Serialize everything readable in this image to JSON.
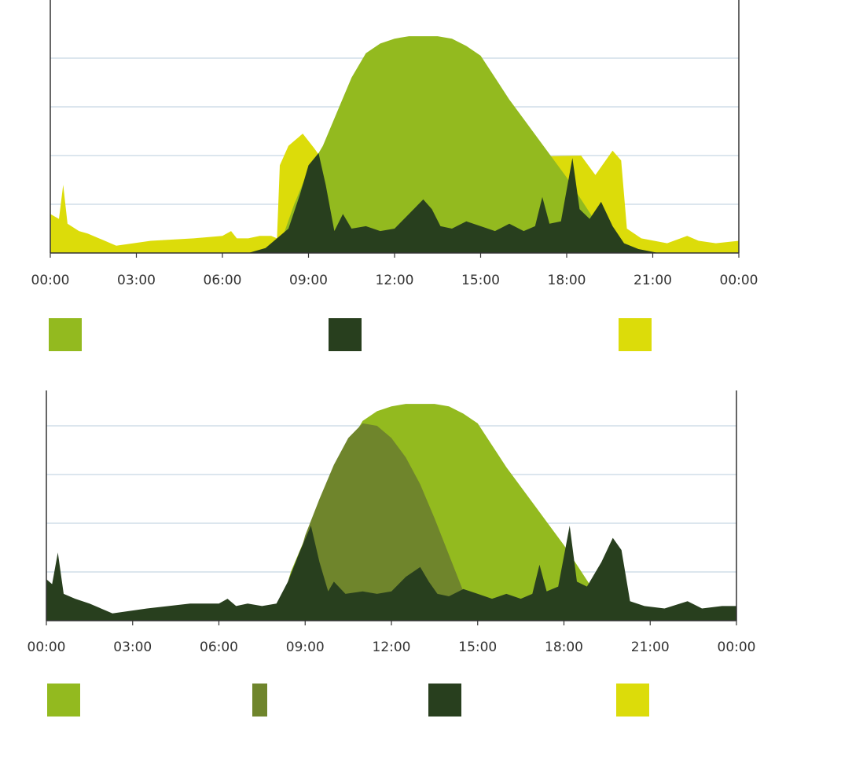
{
  "colors": {
    "production": "#93BA1F",
    "self_consumption": "#6F852C",
    "consumption": "#283F1E",
    "grid_import": "#DCDC0A",
    "grid": "#c8d6e4",
    "axis": "#333333"
  },
  "chart_data": [
    {
      "type": "area",
      "title": "",
      "xlabel": "",
      "ylabel": "",
      "x_ticks": [
        "00:00",
        "03:00",
        "06:00",
        "09:00",
        "12:00",
        "15:00",
        "18:00",
        "21:00",
        "00:00"
      ],
      "xlim": [
        0,
        24
      ],
      "ylim": [
        0,
        5
      ],
      "grid": true,
      "legend": [
        {
          "name": "",
          "color": "#93BA1F"
        },
        {
          "name": "",
          "color": "#283F1E"
        },
        {
          "name": "",
          "color": "#DCDC0A"
        }
      ],
      "series": [
        {
          "name": "",
          "color": "#DCDC0A",
          "points": [
            [
              0,
              0.8
            ],
            [
              0.3,
              0.7
            ],
            [
              0.45,
              1.4
            ],
            [
              0.6,
              0.6
            ],
            [
              1.0,
              0.45
            ],
            [
              1.3,
              0.4
            ],
            [
              2.3,
              0.15
            ],
            [
              3.5,
              0.25
            ],
            [
              5.0,
              0.3
            ],
            [
              6.0,
              0.35
            ],
            [
              6.3,
              0.45
            ],
            [
              6.5,
              0.3
            ],
            [
              6.9,
              0.3
            ],
            [
              7.3,
              0.35
            ],
            [
              7.7,
              0.35
            ],
            [
              7.9,
              0.3
            ],
            [
              8.0,
              1.8
            ],
            [
              8.3,
              2.2
            ],
            [
              8.5,
              2.3
            ],
            [
              8.8,
              2.45
            ],
            [
              9.2,
              2.15
            ],
            [
              9.5,
              1.9
            ],
            [
              18.5,
              2.0
            ],
            [
              19.0,
              1.6
            ],
            [
              19.6,
              2.1
            ],
            [
              19.9,
              1.9
            ],
            [
              20.1,
              0.5
            ],
            [
              20.6,
              0.3
            ],
            [
              21.5,
              0.2
            ],
            [
              22.2,
              0.35
            ],
            [
              22.6,
              0.25
            ],
            [
              23.2,
              0.2
            ],
            [
              24,
              0.25
            ]
          ]
        },
        {
          "name": "",
          "color": "#93BA1F",
          "points": [
            [
              7.9,
              0
            ],
            [
              8.5,
              1.0
            ],
            [
              9.0,
              1.7
            ],
            [
              9.5,
              2.2
            ],
            [
              10.0,
              2.9
            ],
            [
              10.5,
              3.6
            ],
            [
              11.0,
              4.1
            ],
            [
              11.5,
              4.3
            ],
            [
              12.0,
              4.4
            ],
            [
              12.5,
              4.45
            ],
            [
              13.0,
              4.45
            ],
            [
              13.5,
              4.45
            ],
            [
              14.0,
              4.4
            ],
            [
              14.5,
              4.25
            ],
            [
              15.0,
              4.05
            ],
            [
              15.5,
              3.6
            ],
            [
              16.0,
              3.15
            ],
            [
              16.5,
              2.75
            ],
            [
              17.0,
              2.35
            ],
            [
              17.5,
              1.95
            ],
            [
              18.0,
              1.55
            ],
            [
              18.5,
              1.1
            ],
            [
              19.0,
              0.65
            ],
            [
              19.5,
              0.25
            ],
            [
              20.0,
              0
            ]
          ]
        },
        {
          "name": "",
          "color": "#283F1E",
          "points": [
            [
              6.9,
              0
            ],
            [
              7.5,
              0.1
            ],
            [
              8.3,
              0.5
            ],
            [
              8.7,
              1.2
            ],
            [
              9.0,
              1.8
            ],
            [
              9.35,
              2.05
            ],
            [
              9.6,
              1.4
            ],
            [
              9.9,
              0.45
            ],
            [
              10.2,
              0.8
            ],
            [
              10.5,
              0.5
            ],
            [
              11.0,
              0.55
            ],
            [
              11.5,
              0.45
            ],
            [
              12.0,
              0.5
            ],
            [
              12.5,
              0.8
            ],
            [
              13.0,
              1.1
            ],
            [
              13.3,
              0.9
            ],
            [
              13.6,
              0.55
            ],
            [
              14.0,
              0.5
            ],
            [
              14.5,
              0.65
            ],
            [
              15.0,
              0.55
            ],
            [
              15.5,
              0.45
            ],
            [
              16.0,
              0.6
            ],
            [
              16.5,
              0.45
            ],
            [
              16.9,
              0.55
            ],
            [
              17.15,
              1.15
            ],
            [
              17.4,
              0.6
            ],
            [
              17.8,
              0.65
            ],
            [
              18.2,
              1.95
            ],
            [
              18.45,
              0.9
            ],
            [
              18.8,
              0.7
            ],
            [
              19.2,
              1.05
            ],
            [
              19.6,
              0.55
            ],
            [
              20.0,
              0.2
            ],
            [
              20.5,
              0.08
            ],
            [
              21.2,
              0
            ]
          ]
        }
      ]
    },
    {
      "type": "area",
      "title": "",
      "xlabel": "",
      "ylabel": "",
      "x_ticks": [
        "00:00",
        "03:00",
        "06:00",
        "09:00",
        "12:00",
        "15:00",
        "18:00",
        "21:00",
        "00:00"
      ],
      "xlim": [
        0,
        24
      ],
      "ylim": [
        0,
        5
      ],
      "grid": true,
      "legend": [
        {
          "name": "",
          "color": "#93BA1F"
        },
        {
          "name": "",
          "color": "#6F852C"
        },
        {
          "name": "",
          "color": "#283F1E"
        },
        {
          "name": "",
          "color": "#DCDC0A"
        }
      ],
      "series": [
        {
          "name": "",
          "color": "#93BA1F",
          "points": [
            [
              8.0,
              0
            ],
            [
              8.5,
              1.0
            ],
            [
              9.0,
              1.7
            ],
            [
              9.5,
              2.2
            ],
            [
              10.0,
              2.9
            ],
            [
              10.5,
              3.6
            ],
            [
              11.0,
              4.1
            ],
            [
              11.5,
              4.3
            ],
            [
              12.0,
              4.4
            ],
            [
              12.5,
              4.45
            ],
            [
              13.0,
              4.45
            ],
            [
              13.5,
              4.45
            ],
            [
              14.0,
              4.4
            ],
            [
              14.5,
              4.25
            ],
            [
              15.0,
              4.05
            ],
            [
              15.5,
              3.6
            ],
            [
              16.0,
              3.15
            ],
            [
              16.5,
              2.75
            ],
            [
              17.0,
              2.35
            ],
            [
              17.5,
              1.95
            ],
            [
              18.0,
              1.55
            ],
            [
              18.5,
              1.1
            ],
            [
              19.0,
              0.65
            ],
            [
              19.5,
              0.25
            ],
            [
              20.0,
              0
            ]
          ]
        },
        {
          "name": "",
          "color": "#6F852C",
          "points": [
            [
              8.2,
              0
            ],
            [
              8.6,
              0.9
            ],
            [
              9.0,
              1.75
            ],
            [
              9.5,
              2.5
            ],
            [
              10.0,
              3.2
            ],
            [
              10.5,
              3.75
            ],
            [
              11.0,
              4.05
            ],
            [
              11.5,
              4.0
            ],
            [
              12.0,
              3.75
            ],
            [
              12.5,
              3.35
            ],
            [
              13.0,
              2.8
            ],
            [
              13.5,
              2.1
            ],
            [
              14.0,
              1.35
            ],
            [
              14.5,
              0.6
            ],
            [
              15.0,
              0
            ]
          ]
        },
        {
          "name": "",
          "color": "#283F1E",
          "points": [
            [
              0,
              0.85
            ],
            [
              0.2,
              0.75
            ],
            [
              0.4,
              1.4
            ],
            [
              0.6,
              0.55
            ],
            [
              1.0,
              0.45
            ],
            [
              1.5,
              0.35
            ],
            [
              2.3,
              0.15
            ],
            [
              3.5,
              0.25
            ],
            [
              5.0,
              0.35
            ],
            [
              6.0,
              0.35
            ],
            [
              6.3,
              0.45
            ],
            [
              6.6,
              0.3
            ],
            [
              7.0,
              0.35
            ],
            [
              7.5,
              0.3
            ],
            [
              8.0,
              0.35
            ],
            [
              8.4,
              0.8
            ],
            [
              8.8,
              1.4
            ],
            [
              9.2,
              1.95
            ],
            [
              9.5,
              1.2
            ],
            [
              9.8,
              0.6
            ],
            [
              10.0,
              0.8
            ],
            [
              10.4,
              0.55
            ],
            [
              11.0,
              0.6
            ],
            [
              11.5,
              0.55
            ],
            [
              12.0,
              0.6
            ],
            [
              12.5,
              0.9
            ],
            [
              13.0,
              1.1
            ],
            [
              13.3,
              0.8
            ],
            [
              13.6,
              0.55
            ],
            [
              14.0,
              0.5
            ],
            [
              14.5,
              0.65
            ],
            [
              15.0,
              0.55
            ],
            [
              15.5,
              0.45
            ],
            [
              16.0,
              0.55
            ],
            [
              16.5,
              0.45
            ],
            [
              16.9,
              0.55
            ],
            [
              17.15,
              1.15
            ],
            [
              17.4,
              0.6
            ],
            [
              17.8,
              0.7
            ],
            [
              18.2,
              1.95
            ],
            [
              18.45,
              0.8
            ],
            [
              18.8,
              0.7
            ],
            [
              19.3,
              1.2
            ],
            [
              19.7,
              1.7
            ],
            [
              20.0,
              1.45
            ],
            [
              20.3,
              0.4
            ],
            [
              20.8,
              0.3
            ],
            [
              21.5,
              0.25
            ],
            [
              22.3,
              0.4
            ],
            [
              22.8,
              0.25
            ],
            [
              23.5,
              0.3
            ],
            [
              24,
              0.3
            ]
          ]
        }
      ]
    }
  ]
}
